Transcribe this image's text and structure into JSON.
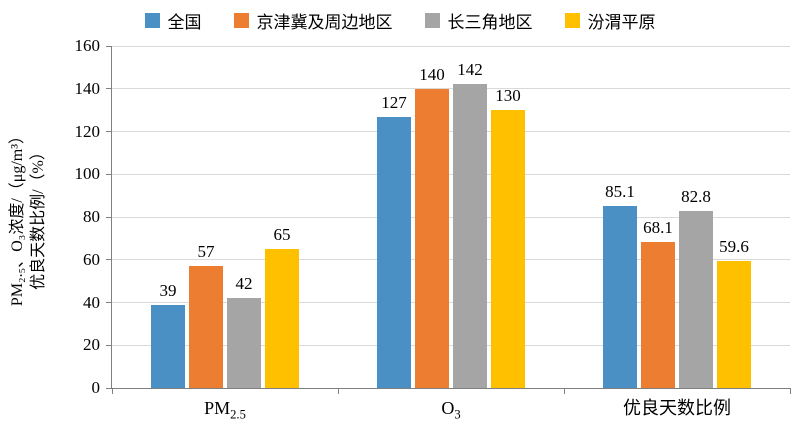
{
  "chart_data": {
    "type": "bar",
    "title": "",
    "categories": [
      "PM2.5",
      "O3",
      "优良天数比例"
    ],
    "categories_rich": [
      {
        "base": "PM",
        "sub": "2.5"
      },
      {
        "base": "O",
        "sub": "3"
      },
      {
        "base": "优良天数比例",
        "sub": ""
      }
    ],
    "series": [
      {
        "name": "全国",
        "color": "#4A90C4",
        "values": [
          39,
          127,
          85.1
        ]
      },
      {
        "name": "京津冀及周边地区",
        "color": "#ED7D31",
        "values": [
          57,
          140,
          68.1
        ]
      },
      {
        "name": "长三角地区",
        "color": "#A5A5A5",
        "values": [
          42,
          142,
          82.8
        ]
      },
      {
        "name": "汾渭平原",
        "color": "#FFC000",
        "values": [
          65,
          130,
          59.6
        ]
      }
    ],
    "ylabel_line1": "PM₂.₅、O₃浓度/（μg/m³）",
    "ylabel_line2": "优良天数比例/（%）",
    "ylim": [
      0,
      160
    ],
    "ytick_step": 20,
    "yticks": [
      0,
      20,
      40,
      60,
      80,
      100,
      120,
      140,
      160
    ],
    "grid": true,
    "legend_position": "top",
    "colors": {
      "gridline": "#d9d9d9",
      "axis": "#808080",
      "text": "#000000"
    }
  }
}
